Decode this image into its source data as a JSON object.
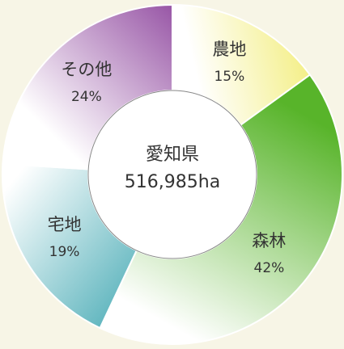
{
  "chart_data": {
    "type": "donut",
    "center_title": "愛知県",
    "center_subtitle": "516,985ha",
    "categories": [
      "農地",
      "森林",
      "宅地",
      "その他"
    ],
    "values": [
      15,
      42,
      19,
      24
    ],
    "value_labels": [
      "15%",
      "42%",
      "19%",
      "24%"
    ],
    "colors": [
      "#f3ee80",
      "#58b42a",
      "#5cb4bd",
      "#9856a6"
    ]
  }
}
